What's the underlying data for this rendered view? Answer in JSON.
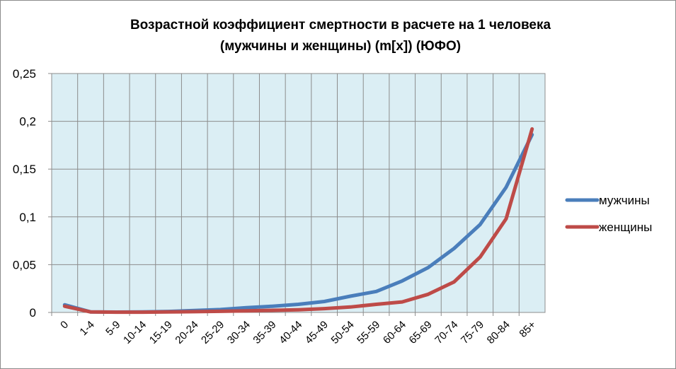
{
  "chart_data": {
    "type": "line",
    "title": "Возрастной коэффициент смертности в расчете на 1 человека (мужчины и женщины) (m[x]) (ЮФО)",
    "title_lines": [
      "Возрастной коэффициент смертности в расчете на 1 человека",
      "(мужчины и женщины) (m[x]) (ЮФО)"
    ],
    "xlabel": "",
    "ylabel": "",
    "categories": [
      "0",
      "1-4",
      "5-9",
      "10-14",
      "15-19",
      "20-24",
      "25-29",
      "30-34",
      "35-39",
      "40-44",
      "45-49",
      "50-54",
      "55-59",
      "60-64",
      "65-69",
      "70-74",
      "75-79",
      "80-84",
      "85+"
    ],
    "ylim": [
      0,
      0.25
    ],
    "yticks": [
      0,
      0.05,
      0.1,
      0.15,
      0.2,
      0.25
    ],
    "ytick_labels": [
      "0",
      "0,05",
      "0,1",
      "0,15",
      "0,2",
      "0,25"
    ],
    "grid": true,
    "plot_background": "#dbeef4",
    "legend_position": "right",
    "series": [
      {
        "name": "мужчины",
        "color": "#4a7ebb",
        "values": [
          0.008,
          0.0006,
          0.0004,
          0.0005,
          0.001,
          0.002,
          0.003,
          0.005,
          0.0065,
          0.0085,
          0.0115,
          0.017,
          0.022,
          0.033,
          0.047,
          0.067,
          0.092,
          0.131,
          0.186
        ]
      },
      {
        "name": "женщины",
        "color": "#be4b48",
        "values": [
          0.0065,
          0.0005,
          0.0003,
          0.0003,
          0.0005,
          0.0008,
          0.0012,
          0.0017,
          0.0022,
          0.0028,
          0.004,
          0.0057,
          0.0085,
          0.011,
          0.019,
          0.032,
          0.058,
          0.098,
          0.192
        ]
      }
    ]
  }
}
